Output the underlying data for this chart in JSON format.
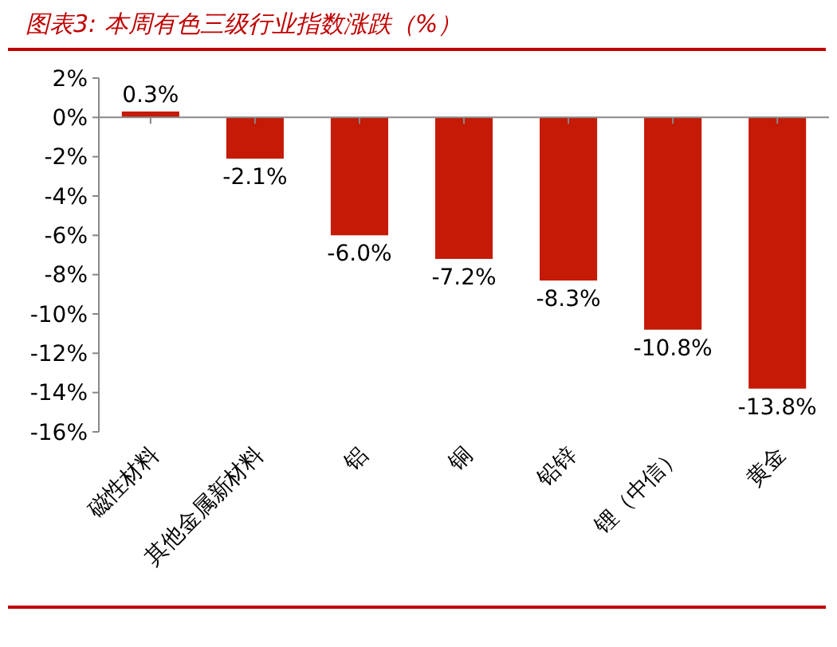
{
  "chart_data": {
    "type": "bar",
    "title": "图表3:  本周有色三级行业指数涨跌（%）",
    "categories": [
      "磁性材料",
      "其他金属新材料",
      "铝",
      "铜",
      "铅锌",
      "锂（中信）",
      "黄金"
    ],
    "values": [
      0.3,
      -2.1,
      -6.0,
      -7.2,
      -8.3,
      -10.8,
      -13.8
    ],
    "value_labels": [
      "0.3%",
      "-2.1%",
      "-6.0%",
      "-7.2%",
      "-8.3%",
      "-10.8%",
      "-13.8%"
    ],
    "color": "#c41a06",
    "ylim": [
      -16,
      2
    ],
    "yticks": [
      {
        "value": 2,
        "label": "2%"
      },
      {
        "value": 0,
        "label": "0%"
      },
      {
        "value": -2,
        "label": "-2%"
      },
      {
        "value": -4,
        "label": "-4%"
      },
      {
        "value": -6,
        "label": "-6%"
      },
      {
        "value": -8,
        "label": "-8%"
      },
      {
        "value": -10,
        "label": "-10%"
      },
      {
        "value": -12,
        "label": "-12%"
      },
      {
        "value": -14,
        "label": "-14%"
      },
      {
        "value": -16,
        "label": "-16%"
      }
    ]
  }
}
